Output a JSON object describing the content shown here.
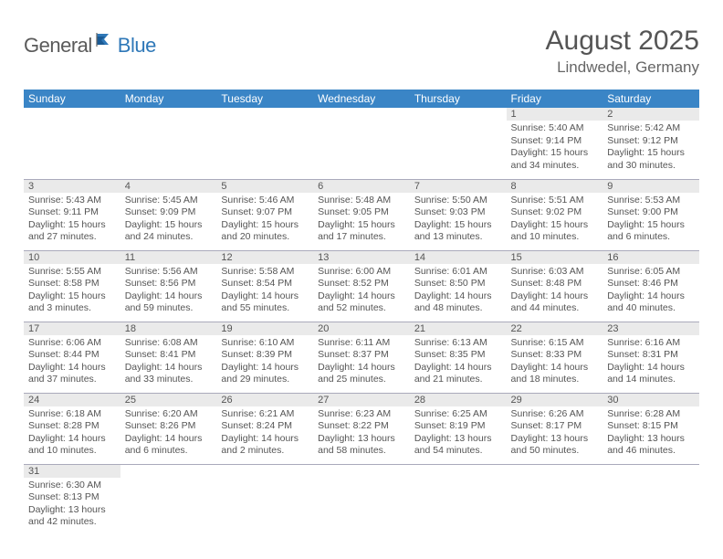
{
  "logo": {
    "text1": "General",
    "text2": "Blue"
  },
  "title": "August 2025",
  "location": "Lindwedel, Germany",
  "colors": {
    "header_bg": "#3a85c6",
    "header_fg": "#ffffff",
    "daynum_bg": "#eaeaea",
    "border": "#9aa4b8",
    "logo_accent": "#2f78b8",
    "text": "#555555"
  },
  "weekdays": [
    "Sunday",
    "Monday",
    "Tuesday",
    "Wednesday",
    "Thursday",
    "Friday",
    "Saturday"
  ],
  "first_weekday_index": 5,
  "days": [
    {
      "n": 1,
      "sunrise": "5:40 AM",
      "sunset": "9:14 PM",
      "daylight": "15 hours and 34 minutes."
    },
    {
      "n": 2,
      "sunrise": "5:42 AM",
      "sunset": "9:12 PM",
      "daylight": "15 hours and 30 minutes."
    },
    {
      "n": 3,
      "sunrise": "5:43 AM",
      "sunset": "9:11 PM",
      "daylight": "15 hours and 27 minutes."
    },
    {
      "n": 4,
      "sunrise": "5:45 AM",
      "sunset": "9:09 PM",
      "daylight": "15 hours and 24 minutes."
    },
    {
      "n": 5,
      "sunrise": "5:46 AM",
      "sunset": "9:07 PM",
      "daylight": "15 hours and 20 minutes."
    },
    {
      "n": 6,
      "sunrise": "5:48 AM",
      "sunset": "9:05 PM",
      "daylight": "15 hours and 17 minutes."
    },
    {
      "n": 7,
      "sunrise": "5:50 AM",
      "sunset": "9:03 PM",
      "daylight": "15 hours and 13 minutes."
    },
    {
      "n": 8,
      "sunrise": "5:51 AM",
      "sunset": "9:02 PM",
      "daylight": "15 hours and 10 minutes."
    },
    {
      "n": 9,
      "sunrise": "5:53 AM",
      "sunset": "9:00 PM",
      "daylight": "15 hours and 6 minutes."
    },
    {
      "n": 10,
      "sunrise": "5:55 AM",
      "sunset": "8:58 PM",
      "daylight": "15 hours and 3 minutes."
    },
    {
      "n": 11,
      "sunrise": "5:56 AM",
      "sunset": "8:56 PM",
      "daylight": "14 hours and 59 minutes."
    },
    {
      "n": 12,
      "sunrise": "5:58 AM",
      "sunset": "8:54 PM",
      "daylight": "14 hours and 55 minutes."
    },
    {
      "n": 13,
      "sunrise": "6:00 AM",
      "sunset": "8:52 PM",
      "daylight": "14 hours and 52 minutes."
    },
    {
      "n": 14,
      "sunrise": "6:01 AM",
      "sunset": "8:50 PM",
      "daylight": "14 hours and 48 minutes."
    },
    {
      "n": 15,
      "sunrise": "6:03 AM",
      "sunset": "8:48 PM",
      "daylight": "14 hours and 44 minutes."
    },
    {
      "n": 16,
      "sunrise": "6:05 AM",
      "sunset": "8:46 PM",
      "daylight": "14 hours and 40 minutes."
    },
    {
      "n": 17,
      "sunrise": "6:06 AM",
      "sunset": "8:44 PM",
      "daylight": "14 hours and 37 minutes."
    },
    {
      "n": 18,
      "sunrise": "6:08 AM",
      "sunset": "8:41 PM",
      "daylight": "14 hours and 33 minutes."
    },
    {
      "n": 19,
      "sunrise": "6:10 AM",
      "sunset": "8:39 PM",
      "daylight": "14 hours and 29 minutes."
    },
    {
      "n": 20,
      "sunrise": "6:11 AM",
      "sunset": "8:37 PM",
      "daylight": "14 hours and 25 minutes."
    },
    {
      "n": 21,
      "sunrise": "6:13 AM",
      "sunset": "8:35 PM",
      "daylight": "14 hours and 21 minutes."
    },
    {
      "n": 22,
      "sunrise": "6:15 AM",
      "sunset": "8:33 PM",
      "daylight": "14 hours and 18 minutes."
    },
    {
      "n": 23,
      "sunrise": "6:16 AM",
      "sunset": "8:31 PM",
      "daylight": "14 hours and 14 minutes."
    },
    {
      "n": 24,
      "sunrise": "6:18 AM",
      "sunset": "8:28 PM",
      "daylight": "14 hours and 10 minutes."
    },
    {
      "n": 25,
      "sunrise": "6:20 AM",
      "sunset": "8:26 PM",
      "daylight": "14 hours and 6 minutes."
    },
    {
      "n": 26,
      "sunrise": "6:21 AM",
      "sunset": "8:24 PM",
      "daylight": "14 hours and 2 minutes."
    },
    {
      "n": 27,
      "sunrise": "6:23 AM",
      "sunset": "8:22 PM",
      "daylight": "13 hours and 58 minutes."
    },
    {
      "n": 28,
      "sunrise": "6:25 AM",
      "sunset": "8:19 PM",
      "daylight": "13 hours and 54 minutes."
    },
    {
      "n": 29,
      "sunrise": "6:26 AM",
      "sunset": "8:17 PM",
      "daylight": "13 hours and 50 minutes."
    },
    {
      "n": 30,
      "sunrise": "6:28 AM",
      "sunset": "8:15 PM",
      "daylight": "13 hours and 46 minutes."
    },
    {
      "n": 31,
      "sunrise": "6:30 AM",
      "sunset": "8:13 PM",
      "daylight": "13 hours and 42 minutes."
    }
  ],
  "labels": {
    "sunrise": "Sunrise:",
    "sunset": "Sunset:",
    "daylight": "Daylight:"
  }
}
